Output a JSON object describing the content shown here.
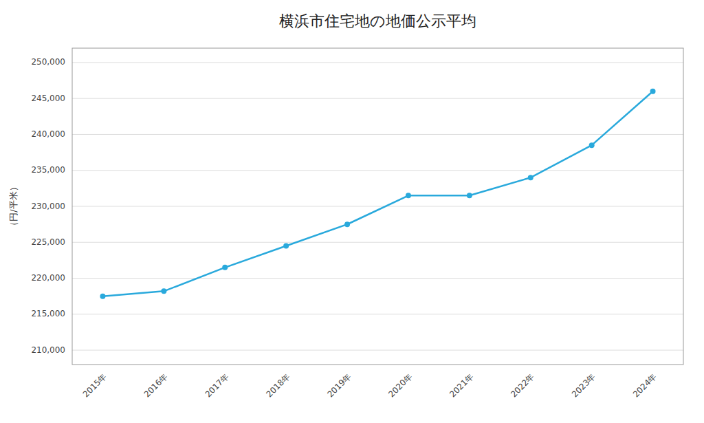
{
  "chart_data": {
    "type": "line",
    "title": "横浜市住宅地の地価公示平均",
    "categories": [
      "2015年",
      "2016年",
      "2017年",
      "2018年",
      "2019年",
      "2020年",
      "2021年",
      "2022年",
      "2023年",
      "2024年"
    ],
    "values": [
      217500,
      218200,
      221500,
      224500,
      227500,
      231500,
      231500,
      234000,
      238500,
      246000
    ],
    "ylabel": "（円/平米）",
    "ylim": [
      208000,
      252000
    ],
    "yticks": [
      {
        "value": 210000,
        "label": "210,000"
      },
      {
        "value": 215000,
        "label": "215,000"
      },
      {
        "value": 220000,
        "label": "220,000"
      },
      {
        "value": 225000,
        "label": "225,000"
      },
      {
        "value": 230000,
        "label": "230,000"
      },
      {
        "value": 235000,
        "label": "235,000"
      },
      {
        "value": 240000,
        "label": "240,000"
      },
      {
        "value": 245000,
        "label": "245,000"
      },
      {
        "value": 250000,
        "label": "250,000"
      }
    ],
    "color": "#29A9DC",
    "marker": "circle",
    "grid": true
  }
}
